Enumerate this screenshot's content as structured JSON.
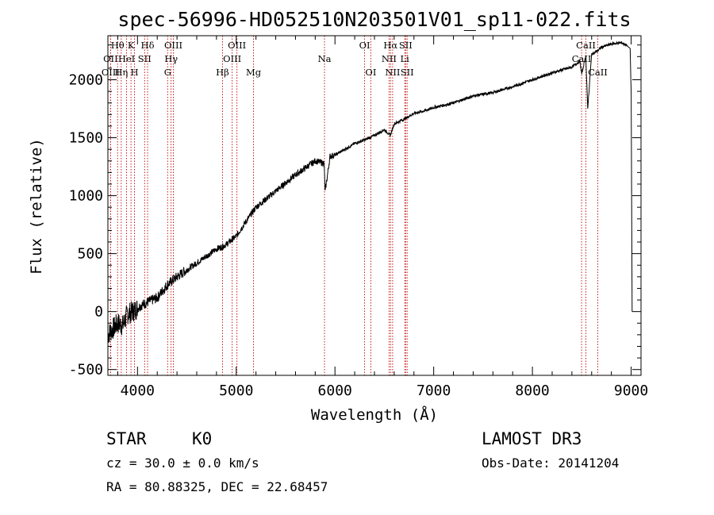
{
  "chart_data": {
    "type": "line",
    "title": "spec-56996-HD052510N203501V01_sp11-022.fits",
    "xlabel": "Wavelength (Å)",
    "ylabel": "Flux (relative)",
    "xlim": [
      3700,
      9100
    ],
    "ylim": [
      -550,
      2380
    ],
    "xticks": [
      4000,
      5000,
      6000,
      7000,
      8000,
      9000
    ],
    "yticks": [
      -500,
      0,
      500,
      1000,
      1500,
      2000
    ],
    "grid": false,
    "series": [
      {
        "name": "spectrum",
        "x": [
          3700,
          3750,
          3800,
          3850,
          3900,
          3950,
          4000,
          4050,
          4100,
          4200,
          4300,
          4400,
          4500,
          4600,
          4700,
          4800,
          4860,
          4900,
          5000,
          5100,
          5200,
          5300,
          5400,
          5500,
          5600,
          5700,
          5800,
          5890,
          5900,
          5950,
          6000,
          6100,
          6200,
          6300,
          6400,
          6500,
          6560,
          6600,
          6700,
          6800,
          6900,
          7000,
          7200,
          7400,
          7600,
          7800,
          8000,
          8200,
          8400,
          8480,
          8500,
          8540,
          8560,
          8600,
          8660,
          8700,
          8800,
          8900,
          8950,
          8990,
          9000,
          9010
        ],
        "y": [
          -200,
          -150,
          -100,
          -120,
          -20,
          0,
          30,
          60,
          80,
          120,
          230,
          300,
          360,
          420,
          480,
          540,
          560,
          580,
          650,
          780,
          900,
          970,
          1040,
          1110,
          1180,
          1240,
          1300,
          1280,
          1030,
          1340,
          1350,
          1400,
          1450,
          1480,
          1520,
          1570,
          1520,
          1620,
          1660,
          1710,
          1730,
          1760,
          1800,
          1860,
          1890,
          1940,
          2000,
          2060,
          2110,
          2160,
          2050,
          2210,
          1750,
          2220,
          2250,
          2280,
          2310,
          2320,
          2300,
          2270,
          1900,
          0
        ]
      }
    ],
    "spectral_lines": [
      {
        "name": "Hθ",
        "wavelength": 3798,
        "row": 1
      },
      {
        "name": "OII",
        "wavelength": 3727,
        "row": 2
      },
      {
        "name": "OIII",
        "wavelength": 3727,
        "row": 3
      },
      {
        "name": "K",
        "wavelength": 3934,
        "row": 1
      },
      {
        "name": "HeI",
        "wavelength": 3889,
        "row": 2
      },
      {
        "name": "Hη",
        "wavelength": 3835,
        "row": 3
      },
      {
        "name": "Hδ",
        "wavelength": 4102,
        "row": 1
      },
      {
        "name": "SII",
        "wavelength": 4072,
        "row": 2
      },
      {
        "name": "H",
        "wavelength": 3969,
        "row": 3
      },
      {
        "name": "OIII",
        "wavelength": 4363,
        "row": 1
      },
      {
        "name": "Hγ",
        "wavelength": 4340,
        "row": 2
      },
      {
        "name": "G",
        "wavelength": 4305,
        "row": 3
      },
      {
        "name": "Hβ",
        "wavelength": 4861,
        "row": 3
      },
      {
        "name": "OIII",
        "wavelength": 5007,
        "row": 1
      },
      {
        "name": "OIII",
        "wavelength": 4959,
        "row": 2
      },
      {
        "name": "Mg",
        "wavelength": 5175,
        "row": 3
      },
      {
        "name": "Na",
        "wavelength": 5894,
        "row": 2
      },
      {
        "name": "OI",
        "wavelength": 6300,
        "row": 1
      },
      {
        "name": "OI",
        "wavelength": 6363,
        "row": 3
      },
      {
        "name": "Hα",
        "wavelength": 6563,
        "row": 1
      },
      {
        "name": "SII",
        "wavelength": 6716,
        "row": 1
      },
      {
        "name": "NII",
        "wavelength": 6548,
        "row": 2
      },
      {
        "name": "Li",
        "wavelength": 6707,
        "row": 2
      },
      {
        "name": "NII",
        "wavelength": 6584,
        "row": 3
      },
      {
        "name": "SII",
        "wavelength": 6731,
        "row": 3
      },
      {
        "name": "CaII",
        "wavelength": 8542,
        "row": 1
      },
      {
        "name": "CaII",
        "wavelength": 8498,
        "row": 2
      },
      {
        "name": "CaII",
        "wavelength": 8662,
        "row": 3
      }
    ]
  },
  "info": {
    "object_class": "STAR",
    "subclass": "K0",
    "survey": "LAMOST DR3",
    "redshift": "cz =  30.0 ±  0.0 km/s",
    "obs_date": "Obs-Date: 20141204",
    "coords": "RA =  80.88325, DEC =  22.68457"
  }
}
